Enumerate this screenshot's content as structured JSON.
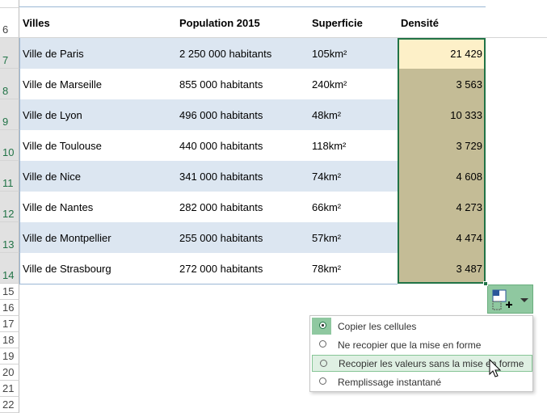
{
  "row_numbers": [
    6,
    7,
    8,
    9,
    10,
    11,
    12,
    13,
    14,
    15,
    16,
    17,
    18,
    19,
    20,
    21,
    22
  ],
  "table": {
    "header": [
      "Villes",
      "Population 2015",
      "Superficie",
      "Densité"
    ],
    "rows": [
      [
        "Ville de Paris",
        "2 250 000 habitants",
        "105km²",
        "21 429"
      ],
      [
        "Ville de Marseille",
        "855 000 habitants",
        "240km²",
        "3 563"
      ],
      [
        "Ville de Lyon",
        "496 000 habitants",
        "48km²",
        "10 333"
      ],
      [
        "Ville de Toulouse",
        "440 000 habitants",
        "118km²",
        "3 729"
      ],
      [
        "Ville de Nice",
        "341 000 habitants",
        "74km²",
        "4 608"
      ],
      [
        "Ville de Nantes",
        "282 000 habitants",
        "66km²",
        "4 273"
      ],
      [
        "Ville de Montpellier",
        "255 000 habitants",
        "57km²",
        "4 474"
      ],
      [
        "Ville de Strasbourg",
        "272 000 habitants",
        "78km²",
        "3 487"
      ]
    ]
  },
  "autofill_menu": {
    "items": [
      "Copier les cellules",
      "Ne recopier que la mise en forme",
      "Recopier les valeurs sans la mise en forme",
      "Remplissage instantané"
    ]
  }
}
